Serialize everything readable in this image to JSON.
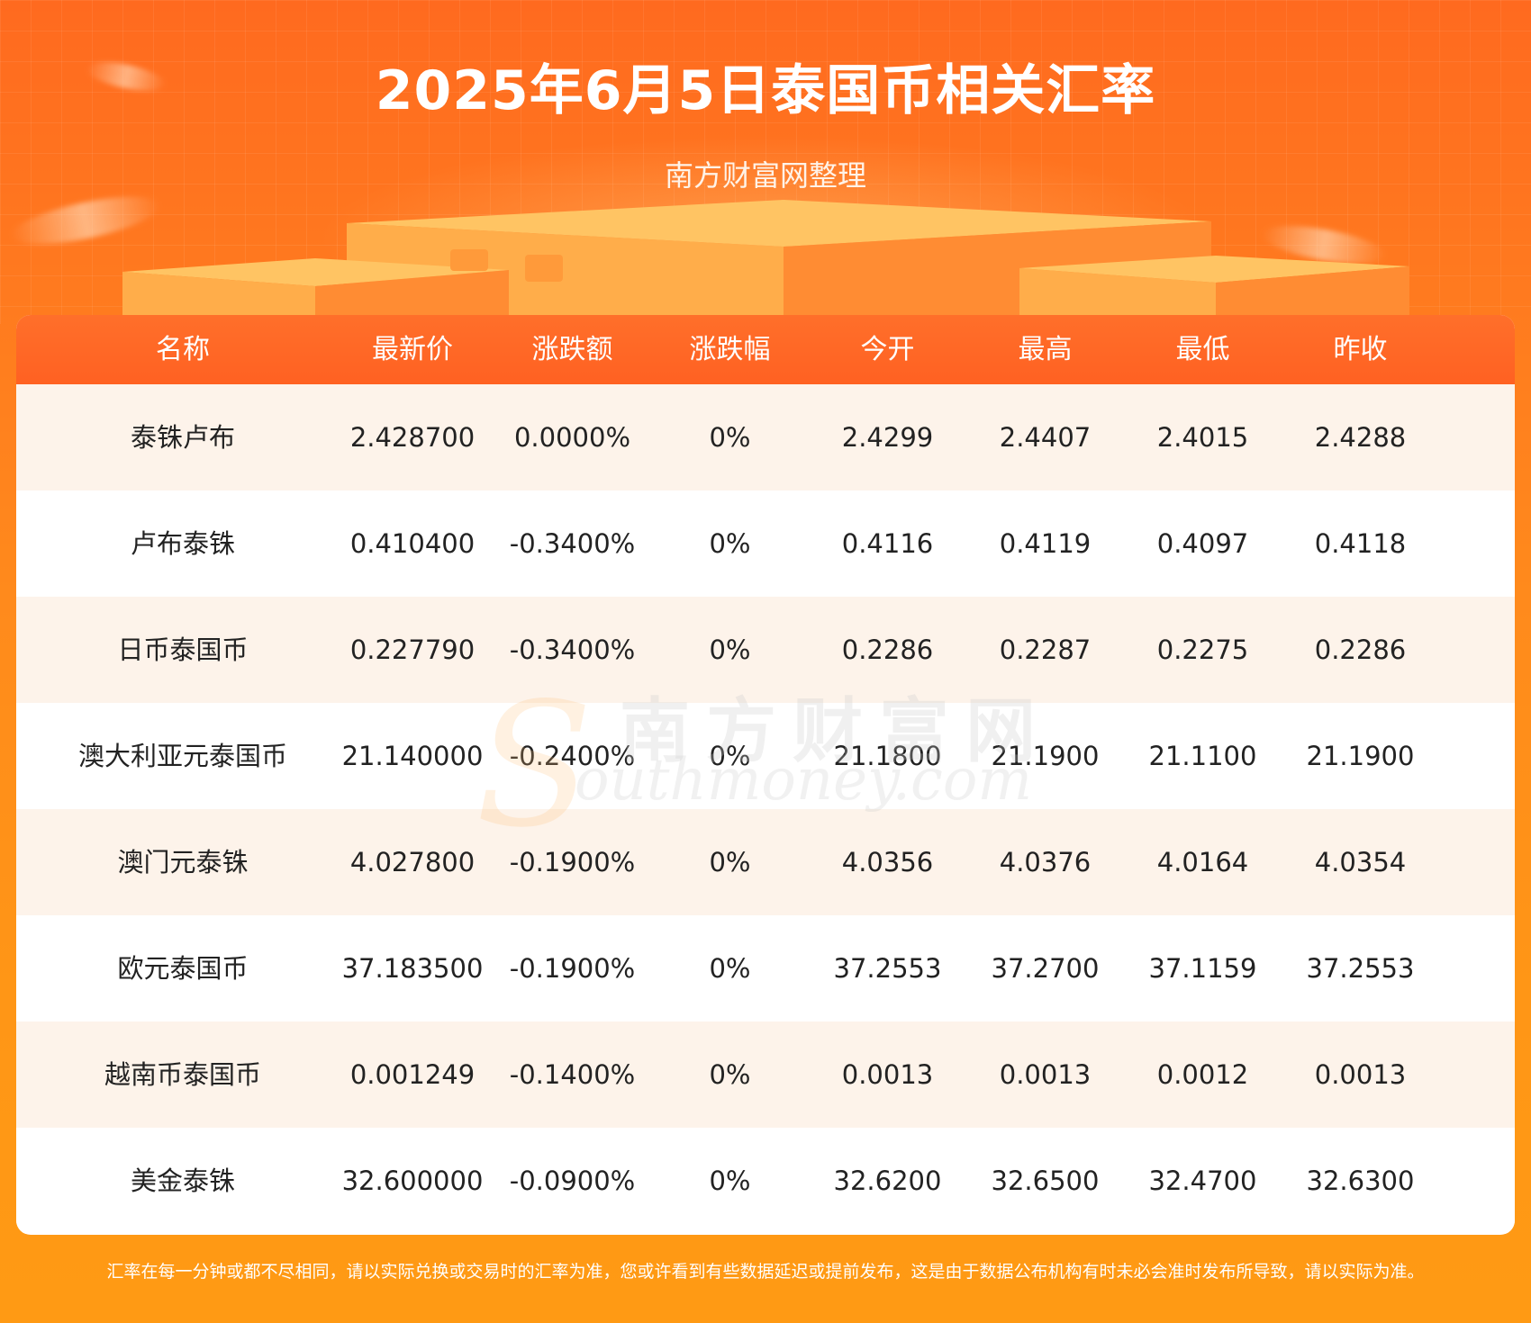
{
  "header": {
    "title": "2025年6月5日泰国币相关汇率",
    "subtitle": "南方财富网整理"
  },
  "table": {
    "columns": [
      "名称",
      "最新价",
      "涨跌额",
      "涨跌幅",
      "今开",
      "最高",
      "最低",
      "昨收"
    ],
    "rows": [
      [
        "泰铢卢布",
        "2.428700",
        "0.0000%",
        "0%",
        "2.4299",
        "2.4407",
        "2.4015",
        "2.4288"
      ],
      [
        "卢布泰铢",
        "0.410400",
        "-0.3400%",
        "0%",
        "0.4116",
        "0.4119",
        "0.4097",
        "0.4118"
      ],
      [
        "日币泰国币",
        "0.227790",
        "-0.3400%",
        "0%",
        "0.2286",
        "0.2287",
        "0.2275",
        "0.2286"
      ],
      [
        "澳大利亚元泰国币",
        "21.140000",
        "-0.2400%",
        "0%",
        "21.1800",
        "21.1900",
        "21.1100",
        "21.1900"
      ],
      [
        "澳门元泰铢",
        "4.027800",
        "-0.1900%",
        "0%",
        "4.0356",
        "4.0376",
        "4.0164",
        "4.0354"
      ],
      [
        "欧元泰国币",
        "37.183500",
        "-0.1900%",
        "0%",
        "37.2553",
        "37.2700",
        "37.1159",
        "37.2553"
      ],
      [
        "越南币泰国币",
        "0.001249",
        "-0.1400%",
        "0%",
        "0.0013",
        "0.0013",
        "0.0012",
        "0.0013"
      ],
      [
        "美金泰铢",
        "32.600000",
        "-0.0900%",
        "0%",
        "32.6200",
        "32.6500",
        "32.4700",
        "32.6300"
      ]
    ]
  },
  "watermark": {
    "cn": "南方财富网",
    "en": "outhmoney.com",
    "initial": "S"
  },
  "footer": {
    "note": "汇率在每一分钟或都不尽相同，请以实际兑换或交易时的汇率为准，您或许看到有些数据延迟或提前发布，这是由于数据公布机构有时未必会准时发布所导致，请以实际为准。"
  },
  "colors": {
    "header_bg": "#ff6a1f",
    "table_header": "#ff6122",
    "row_alt": "#fdf3ea",
    "text": "#222222"
  }
}
